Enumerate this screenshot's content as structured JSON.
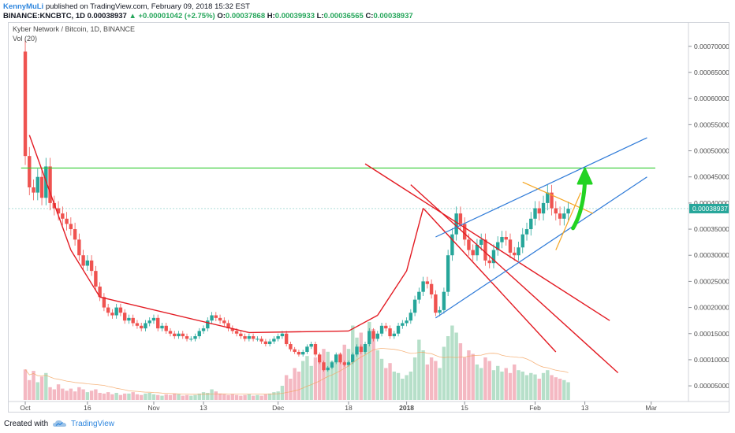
{
  "header": {
    "author": "KennyMuLi",
    "published_text": "published on TradingView.com, February 09, 2018 15:32 EST",
    "symbol_line_prefix": "BINANCE:KNCBTC, 1D 0.00038937",
    "change": "+0.00001042 (+2.75%)",
    "o_label": "O:",
    "o_value": "0.00037868",
    "h_label": "H:",
    "h_value": "0.00039933",
    "l_label": "L:",
    "l_value": "0.00036565",
    "c_label": "C:",
    "c_value": "0.00038937",
    "up_arrow": "▲"
  },
  "legend": {
    "title": "Kyber Network / Bitcoin, 1D, BINANCE",
    "volume": "Vol (20)"
  },
  "footer": {
    "created_with": "Created with",
    "brand": "TradingView",
    "logo_icon": "tradingview-cloud-logo"
  },
  "colors": {
    "up": "#26a69a",
    "down": "#ef5350",
    "vol_up": "#b6dfc9",
    "vol_down": "#f4b8c2",
    "trend_red": "#e31b23",
    "channel_blue": "#2f7bd8",
    "resistance_green": "#33cc33",
    "wedge_orange": "#f5a623",
    "price_tag": "#26a69a"
  },
  "chart_data": {
    "type": "candlestick",
    "title": "Kyber Network / Bitcoin, 1D, BINANCE",
    "x_ticks": [
      {
        "label": "Oct",
        "date": "2017-10-01"
      },
      {
        "label": "16",
        "date": "2017-10-16"
      },
      {
        "label": "Nov",
        "date": "2017-11-01"
      },
      {
        "label": "13",
        "date": "2017-11-13"
      },
      {
        "label": "Dec",
        "date": "2017-12-01"
      },
      {
        "label": "18",
        "date": "2017-12-18"
      },
      {
        "label": "2018",
        "date": "2018-01-01"
      },
      {
        "label": "15",
        "date": "2018-01-15"
      },
      {
        "label": "Feb",
        "date": "2018-02-01"
      },
      {
        "label": "13",
        "date": "2018-02-13"
      },
      {
        "label": "Mar",
        "date": "2018-03-01"
      }
    ],
    "y_ticks": [
      "0.00005000",
      "0.00010000",
      "0.00015000",
      "0.00020000",
      "0.00025000",
      "0.00030000",
      "0.00035000",
      "0.00040000",
      "0.00045000",
      "0.00050000",
      "0.00055000",
      "0.00060000",
      "0.00065000",
      "0.00070000"
    ],
    "ylim": [
      2e-05,
      0.000745
    ],
    "x_start": "2017-09-27",
    "x_end": "2018-03-10",
    "last_price_label": "0.00038937",
    "last_price": 0.00038937,
    "closes": [
      0.00049,
      0.00043,
      0.00042,
      0.00045,
      0.00041,
      0.00047,
      0.0004,
      0.00039,
      0.00038,
      0.00037,
      0.00036,
      0.00035,
      0.00033,
      0.0003,
      0.00028,
      0.00029,
      0.00027,
      0.00024,
      0.00022,
      0.0002,
      0.00019,
      0.000185,
      0.0002,
      0.00019,
      0.000175,
      0.00018,
      0.00017,
      0.000165,
      0.00016,
      0.00017,
      0.000175,
      0.00018,
      0.00016,
      0.000165,
      0.000155,
      0.00015,
      0.000145,
      0.00015,
      0.000145,
      0.00014,
      0.00014,
      0.000145,
      0.000155,
      0.00016,
      0.000175,
      0.000185,
      0.00018,
      0.000175,
      0.00017,
      0.00016,
      0.000155,
      0.00015,
      0.000145,
      0.00014,
      0.000145,
      0.00014,
      0.00014,
      0.000135,
      0.00013,
      0.000135,
      0.00014,
      0.000145,
      0.00015,
      0.00013,
      0.00012,
      0.000115,
      0.00011,
      0.000115,
      0.000125,
      0.00013,
      0.00011,
      9.5e-05,
      8e-05,
      8.5e-05,
      9.5e-05,
      0.00011,
      9.5e-05,
      9e-05,
      9.5e-05,
      0.00011,
      0.000125,
      0.000115,
      0.00013,
      0.000155,
      0.00014,
      0.00015,
      0.000165,
      0.00016,
      0.000145,
      0.00015,
      0.000165,
      0.00017,
      0.000175,
      0.00019,
      0.000215,
      0.00023,
      0.00025,
      0.000245,
      0.000225,
      0.00019,
      0.000195,
      0.00023,
      0.0003,
      0.00034,
      0.00038,
      0.00036,
      0.00033,
      0.00031,
      0.0003,
      0.00032,
      0.00033,
      0.00029,
      0.000285,
      0.00031,
      0.000325,
      0.000335,
      0.00033,
      0.000305,
      0.0003,
      0.000315,
      0.00034,
      0.00035,
      0.00037,
      0.00039,
      0.00038,
      0.0004,
      0.00042,
      0.00039,
      0.00038,
      0.00037,
      0.00038,
      0.000389
    ],
    "volumes": [
      4.3e-05,
      2.8e-05,
      4.1e-05,
      2.5e-05,
      3.3e-05,
      3.8e-05,
      1.8e-05,
      1.5e-05,
      2.2e-05,
      1.6e-05,
      1.3e-05,
      1.6e-05,
      1.2e-05,
      1.8e-05,
      1.5e-05,
      1.1e-05,
      1.3e-05,
      1.5e-05,
      1e-05,
      9e-06,
      1.1e-05,
      8e-06,
      1e-05,
      7e-06,
      9e-06,
      9e-06,
      1.1e-05,
      8e-06,
      7e-06,
      9e-06,
      1e-05,
      8e-06,
      7e-06,
      6e-06,
      8e-06,
      7e-06,
      9e-06,
      8e-06,
      6e-06,
      7e-06,
      6e-06,
      7e-06,
      9e-06,
      1.1e-05,
      1e-05,
      1.5e-05,
      1.2e-05,
      9e-06,
      8e-06,
      7e-06,
      8e-06,
      7e-06,
      6e-06,
      7e-06,
      8e-06,
      6e-06,
      7e-06,
      6e-06,
      8e-06,
      9e-06,
      1.1e-05,
      1.2e-05,
      2e-05,
      3.5e-05,
      3e-05,
      4.5e-05,
      4e-05,
      5.5e-05,
      6.2e-05,
      4.8e-05,
      6e-05,
      5.8e-05,
      7.2e-05,
      6.8e-05,
      5.5e-05,
      6.2e-05,
      6.6e-05,
      7.8e-05,
      7.2e-05,
      0.000105,
      8.8e-05,
      9.5e-05,
      7.5e-05,
      0.00011,
      0.0001,
      7e-05,
      5.8e-05,
      4.5e-05,
      5.2e-05,
      4e-05,
      3.8e-05,
      3e-05,
      3.5e-05,
      4e-05,
      6e-05,
      8.5e-05,
      7e-05,
      5e-05,
      6e-05,
      5.5e-05,
      4.5e-05,
      7.5e-05,
      9e-05,
      0.000105,
      9.5e-05,
      8e-05,
      6e-05,
      7e-05,
      6.5e-05,
      5e-05,
      4.5e-05,
      6e-05,
      5.5e-05,
      4.2e-05,
      4.8e-05,
      4e-05,
      4.5e-05,
      3.8e-05,
      5e-05,
      4.2e-05,
      4e-05,
      3.5e-05,
      3.8e-05,
      3.6e-05,
      3e-05,
      3.8e-05,
      4.2e-05,
      3.5e-05,
      3.2e-05,
      3e-05,
      2.8e-05,
      2.5e-05
    ],
    "annotations": {
      "resistance": 0.000467,
      "red_trendlines": [
        {
          "x1": "2017-10-02",
          "y1": 0.00053,
          "x2": "2017-10-12",
          "y2": 0.00031
        },
        {
          "x1": "2017-10-12",
          "y1": 0.00031,
          "x2": "2017-10-19",
          "y2": 0.00022
        },
        {
          "x1": "2017-10-19",
          "y1": 0.00022,
          "x2": "2017-11-24",
          "y2": 0.000152
        },
        {
          "x1": "2017-11-24",
          "y1": 0.000152,
          "x2": "2017-12-18",
          "y2": 0.000155
        },
        {
          "x1": "2017-12-18",
          "y1": 0.000155,
          "x2": "2017-12-25",
          "y2": 0.000185
        },
        {
          "x1": "2017-12-25",
          "y1": 0.000185,
          "x2": "2018-01-01",
          "y2": 0.00027
        },
        {
          "x1": "2018-01-01",
          "y1": 0.00027,
          "x2": "2018-01-05",
          "y2": 0.00039
        },
        {
          "x1": "2018-01-05",
          "y1": 0.00039,
          "x2": "2018-02-06",
          "y2": 0.000115
        },
        {
          "x1": "2017-12-22",
          "y1": 0.000475,
          "x2": "2018-02-19",
          "y2": 0.000175
        },
        {
          "x1": "2018-01-02",
          "y1": 0.000435,
          "x2": "2018-02-21",
          "y2": 7.5e-05
        }
      ],
      "blue_channel": [
        {
          "x1": "2018-01-08",
          "y1": 0.000335,
          "x2": "2018-02-28",
          "y2": 0.000525
        },
        {
          "x1": "2018-01-08",
          "y1": 0.00018,
          "x2": "2018-02-28",
          "y2": 0.00045
        }
      ],
      "orange_wedge": [
        {
          "x1": "2018-01-29",
          "y1": 0.00044,
          "x2": "2018-02-15",
          "y2": 0.00038
        },
        {
          "x1": "2018-02-06",
          "y1": 0.00031,
          "x2": "2018-02-12",
          "y2": 0.00042
        }
      ],
      "green_arrow": {
        "x": "2018-02-13",
        "from": 0.0004,
        "to": 0.000467
      }
    }
  }
}
